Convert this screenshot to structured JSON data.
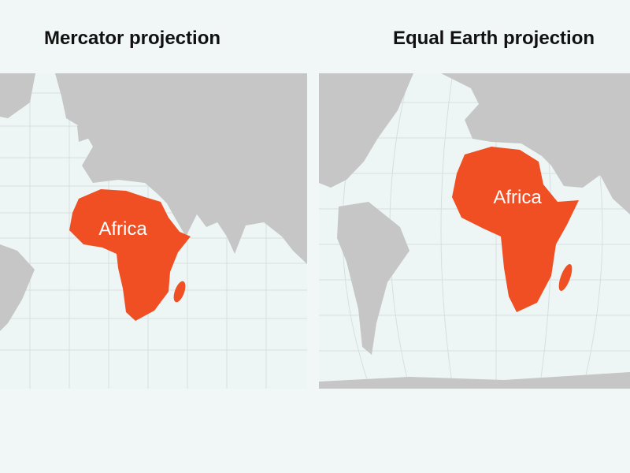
{
  "maps": [
    {
      "title": "Mercator projection",
      "label": "Africa"
    },
    {
      "title": "Equal Earth projection",
      "label": "Africa"
    }
  ]
}
